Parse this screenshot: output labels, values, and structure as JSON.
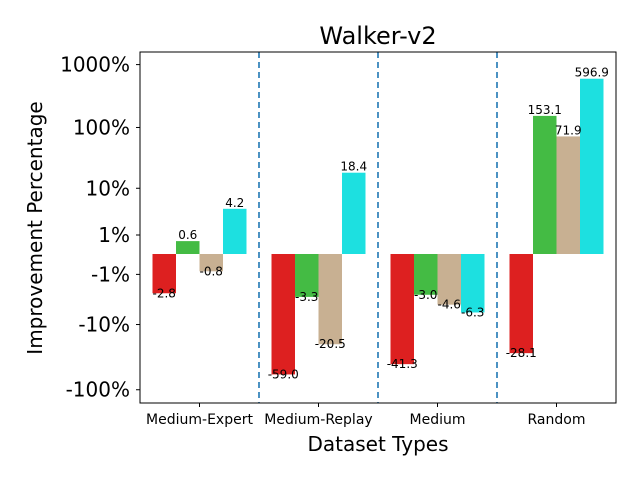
{
  "chart_data": {
    "type": "bar",
    "title": "Walker-v2",
    "xlabel": "Dataset Types",
    "ylabel": "Improvement Percentage",
    "yscale": "symlog",
    "ylim": [
      -100,
      1000
    ],
    "yticks": [
      {
        "value": 1000,
        "label": "1000%"
      },
      {
        "value": 100,
        "label": "100%"
      },
      {
        "value": 10,
        "label": "10%"
      },
      {
        "value": 1,
        "label": "1%"
      },
      {
        "value": -1,
        "label": "-1%"
      },
      {
        "value": -10,
        "label": "-10%"
      },
      {
        "value": -100,
        "label": "-100%"
      }
    ],
    "categories": [
      "Medium-Expert",
      "Medium-Replay",
      "Medium",
      "Random"
    ],
    "series": [
      {
        "name": "series-1",
        "color": "#dd2020",
        "values": [
          -2.8,
          -59.0,
          -41.3,
          -28.1
        ],
        "labels": [
          "-2.8",
          "-59.0",
          "-41.3",
          "-28.1"
        ]
      },
      {
        "name": "series-2",
        "color": "#44bb44",
        "values": [
          0.6,
          -3.3,
          -3.0,
          153.1
        ],
        "labels": [
          "0.6",
          "-3.3",
          "-3.0",
          "153.1"
        ]
      },
      {
        "name": "series-3",
        "color": "#c8b092",
        "values": [
          -0.8,
          -20.5,
          -4.6,
          71.9
        ],
        "labels": [
          "-0.8",
          "-20.5",
          "-4.6",
          "71.9"
        ]
      },
      {
        "name": "series-4",
        "color": "#1de0e0",
        "values": [
          4.2,
          18.4,
          -6.3,
          596.9
        ],
        "labels": [
          "4.2",
          "18.4",
          "-6.3",
          "596.9"
        ]
      }
    ],
    "separator_color": "#1f77b4",
    "grid": false,
    "legend": "none"
  }
}
